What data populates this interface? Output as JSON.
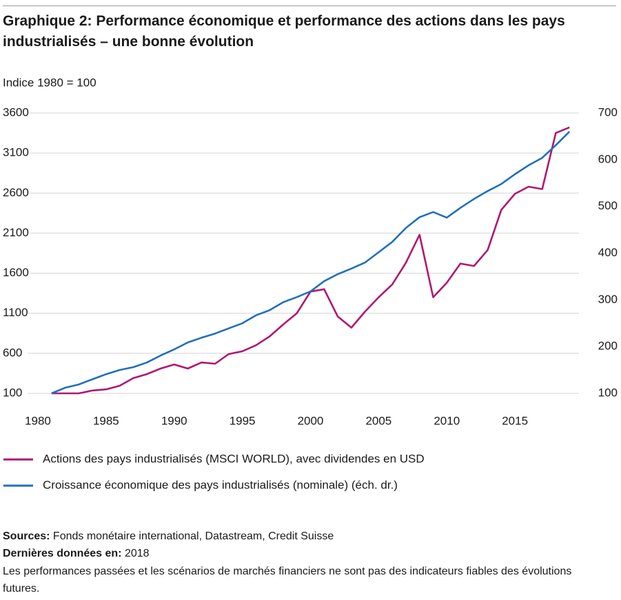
{
  "chart_data": {
    "type": "line",
    "title": "Graphique 2: Performance économique et performance des actions dans les pays industrialisés – une bonne évolution",
    "y_label": "Indice 1980 = 100",
    "x": [
      1981,
      1982,
      1983,
      1984,
      1985,
      1986,
      1987,
      1988,
      1989,
      1990,
      1991,
      1992,
      1993,
      1994,
      1995,
      1996,
      1997,
      1998,
      1999,
      2000,
      2001,
      2002,
      2003,
      2004,
      2005,
      2006,
      2007,
      2008,
      2009,
      2010,
      2011,
      2012,
      2013,
      2014,
      2015,
      2016,
      2017,
      2018,
      2019
    ],
    "xlim": [
      1979,
      2020
    ],
    "xticks": [
      1980,
      1985,
      1990,
      1995,
      2000,
      2005,
      2010,
      2015
    ],
    "ylim": [
      100,
      3600
    ],
    "yticks": [
      100,
      600,
      1100,
      1600,
      2100,
      2600,
      3100,
      3600
    ],
    "y2lim": [
      100,
      700
    ],
    "y2ticks": [
      100,
      200,
      300,
      400,
      500,
      600,
      700
    ],
    "grid": true,
    "series": [
      {
        "name": "Actions des pays industrialisés (MSCI WORLD), avec dividendes en USD",
        "color": "#b0176f",
        "values": [
          100,
          100,
          100,
          135,
          150,
          195,
          290,
          340,
          410,
          460,
          410,
          485,
          470,
          590,
          625,
          700,
          810,
          960,
          1100,
          1370,
          1400,
          1060,
          920,
          1120,
          1300,
          1460,
          1730,
          2080,
          1300,
          1480,
          1720,
          1690,
          1890,
          2390,
          2590,
          2680,
          2650,
          3350,
          3420
        ]
      },
      {
        "name": "Croissance économique des pays industrialisés (nominale) (éch. dr.)",
        "color": "#1f6fbd",
        "axis": "y2",
        "values": [
          100,
          112,
          119,
          130,
          141,
          150,
          156,
          166,
          181,
          194,
          209,
          219,
          228,
          239,
          250,
          267,
          278,
          295,
          306,
          318,
          340,
          355,
          367,
          380,
          402,
          424,
          454,
          477,
          488,
          476,
          497,
          516,
          533,
          548,
          569,
          588,
          604,
          631,
          660
        ]
      }
    ]
  },
  "footer": {
    "sources_label": "Sources:",
    "sources_text": "Fonds monétaire international, Datastream, Credit Suisse",
    "data_label": "Dernières données en:",
    "data_text": "2018",
    "disclaimer": "Les performances passées et les scénarios de marchés financiers ne sont pas des indicateurs fiables des évolutions futures."
  }
}
